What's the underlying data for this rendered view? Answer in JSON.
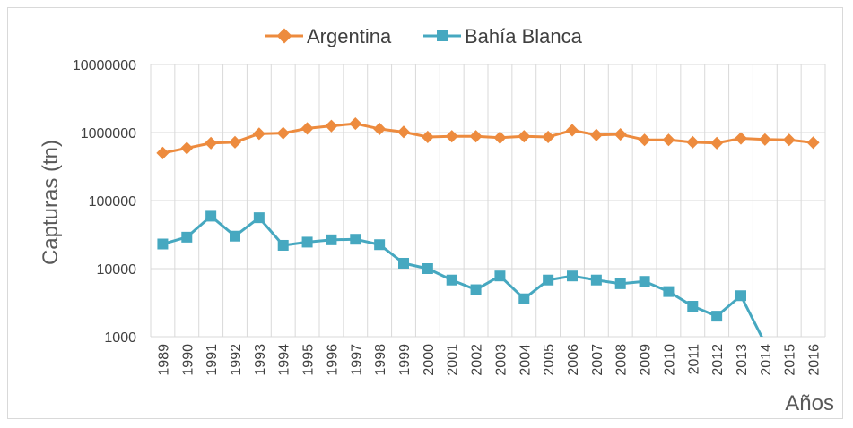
{
  "chart_data": {
    "type": "line",
    "ylabel": "Capturas (tn)",
    "xlabel": "Años",
    "yscale": "log",
    "ylim": [
      1000,
      10000000
    ],
    "yticks": [
      "1000",
      "10000",
      "100000",
      "1000000",
      "10000000"
    ],
    "grid": true,
    "legend_position": "top",
    "categories": [
      "1989",
      "1990",
      "1991",
      "1992",
      "1993",
      "1994",
      "1995",
      "1996",
      "1997",
      "1998",
      "1999",
      "2000",
      "2001",
      "2002",
      "2003",
      "2004",
      "2005",
      "2006",
      "2007",
      "2008",
      "2009",
      "2010",
      "2011",
      "2012",
      "2013",
      "2014",
      "2015",
      "2016"
    ],
    "series": [
      {
        "name": "Argentina",
        "color": "#ed8b3e",
        "marker": "diamond",
        "values": [
          500000,
          590000,
          700000,
          720000,
          960000,
          980000,
          1150000,
          1250000,
          1350000,
          1130000,
          1020000,
          860000,
          880000,
          880000,
          840000,
          880000,
          860000,
          1080000,
          920000,
          940000,
          780000,
          780000,
          720000,
          700000,
          820000,
          790000,
          780000,
          710000
        ]
      },
      {
        "name": "Bahía Blanca",
        "color": "#46a8c0",
        "marker": "square",
        "values": [
          23000,
          29000,
          59000,
          30000,
          56000,
          22000,
          24500,
          26500,
          27000,
          22500,
          12000,
          10000,
          6800,
          4900,
          7800,
          3600,
          6800,
          7800,
          6800,
          6000,
          6500,
          4600,
          2800,
          2000,
          4000,
          800,
          null,
          null
        ]
      }
    ]
  }
}
